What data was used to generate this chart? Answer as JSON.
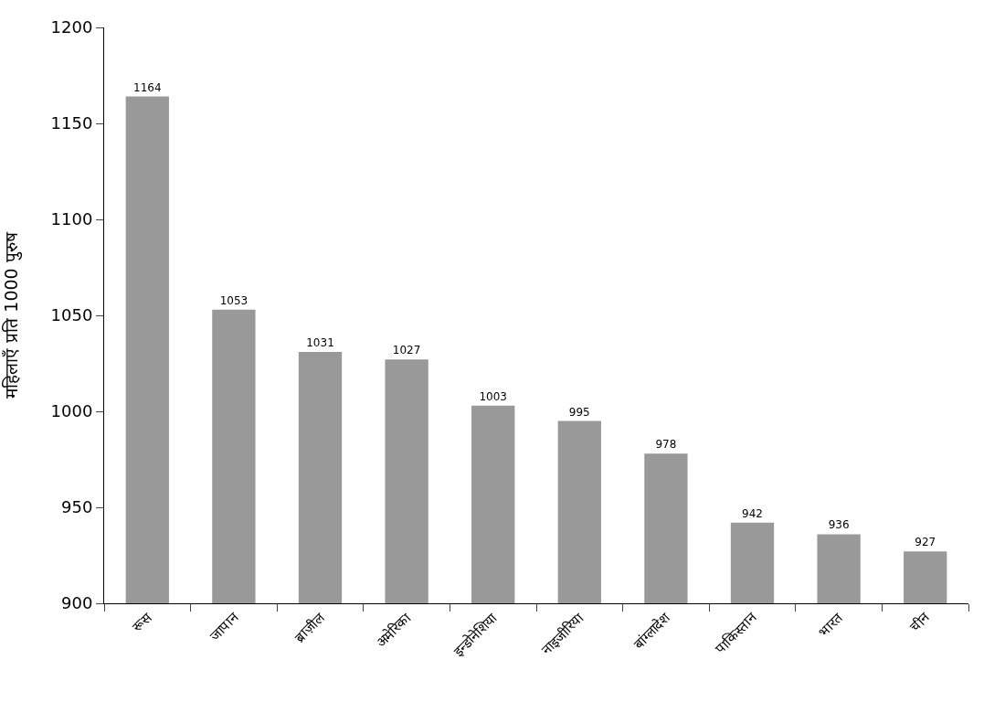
{
  "chart_data": {
    "type": "bar",
    "ylabel": "महिलाएँ प्रति 1000 पुरुष",
    "categories": [
      "रूस",
      "जापान",
      "ब्राज़ील",
      "अमेरिका",
      "इन्डोनेशिया",
      "नाइजीरिया",
      "बांग्लादेश",
      "पाकिस्तान",
      "भारत",
      "चीन"
    ],
    "values": [
      1164,
      1053,
      1031,
      1027,
      1003,
      995,
      978,
      942,
      936,
      927
    ],
    "color": "#999999",
    "ylim": [
      900,
      1200
    ],
    "yticks": [
      900,
      950,
      1000,
      1050,
      1100,
      1150,
      1200
    ],
    "data_labels": true
  }
}
